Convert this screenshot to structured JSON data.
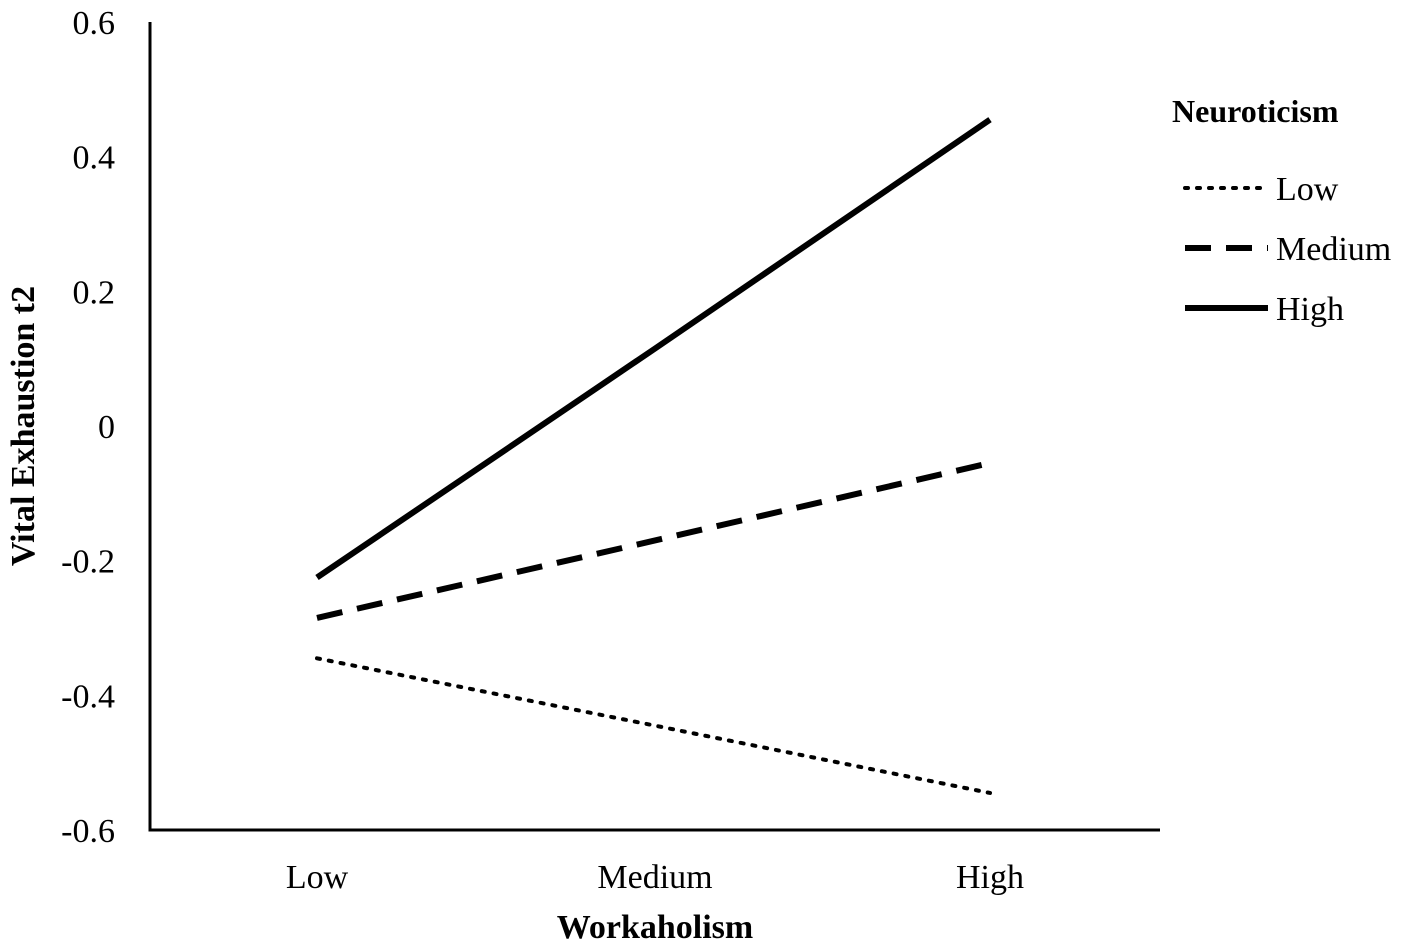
{
  "chart_data": {
    "type": "line",
    "title": "",
    "xlabel": "Workaholism",
    "ylabel": "Vital Exhaustion t2",
    "categories": [
      "Low",
      "Medium",
      "High"
    ],
    "ylim": [
      -0.6,
      0.6
    ],
    "yticks": [
      "0.6",
      "0.4",
      "0.2",
      "0",
      "-0.2",
      "-0.4",
      "-0.6"
    ],
    "ytick_values": [
      0.6,
      0.4,
      0.2,
      0,
      -0.2,
      -0.4,
      -0.6
    ],
    "grid": false,
    "legend": {
      "title": "Neuroticism",
      "placement": "right"
    },
    "series": [
      {
        "name": "Low",
        "style": "dotted",
        "values": [
          -0.345,
          -0.445,
          -0.545
        ]
      },
      {
        "name": "Medium",
        "style": "dashed",
        "values": [
          -0.285,
          -0.17,
          -0.055
        ]
      },
      {
        "name": "High",
        "style": "solid",
        "values": [
          -0.225,
          0.115,
          0.455
        ]
      }
    ],
    "line_color": "#000000"
  }
}
